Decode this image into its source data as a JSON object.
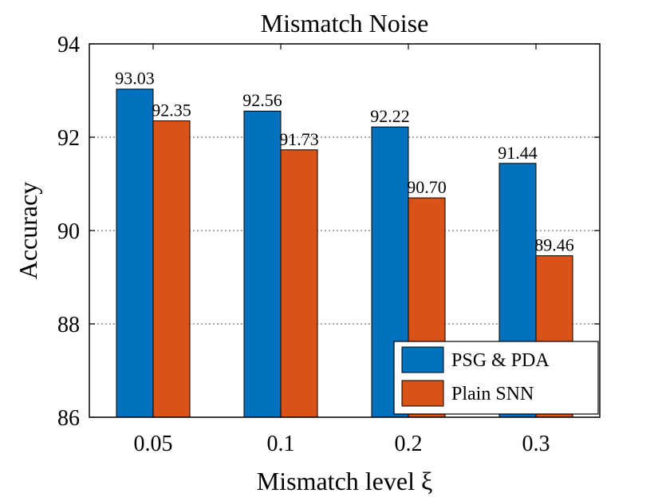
{
  "chart_data": {
    "type": "bar",
    "title": "Mismatch Noise",
    "xlabel": "Mismatch level ξ",
    "ylabel": "Accuracy",
    "categories": [
      "0.05",
      "0.1",
      "0.2",
      "0.3"
    ],
    "ylim": [
      86,
      94
    ],
    "yticks": [
      86,
      88,
      90,
      92,
      94
    ],
    "grid": "horizontal dotted",
    "legend_position": "bottom-right",
    "series": [
      {
        "name": "PSG & PDA",
        "color": "#0072BD",
        "values": [
          93.03,
          92.56,
          92.22,
          91.44
        ],
        "labels": [
          "93.03",
          "92.56",
          "92.22",
          "91.44"
        ]
      },
      {
        "name": "Plain SNN",
        "color": "#D95319",
        "values": [
          92.35,
          91.73,
          90.7,
          89.46
        ],
        "labels": [
          "92.35",
          "91.73",
          "90.70",
          "89.46"
        ]
      }
    ]
  }
}
